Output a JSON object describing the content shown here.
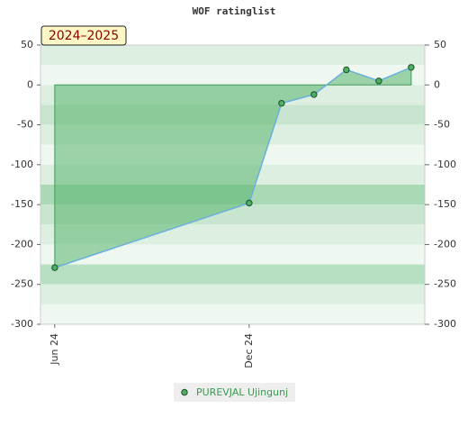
{
  "chart_data": {
    "type": "area",
    "title": "WOF ratinglist",
    "badge": "2024–2025",
    "x": [
      0,
      6,
      7,
      8,
      9,
      10,
      11
    ],
    "xlim": [
      -0.44,
      11.42
    ],
    "xticks": [
      {
        "value": 0,
        "label": "Jun 24"
      },
      {
        "value": 6,
        "label": "Dec 24"
      }
    ],
    "series": [
      {
        "name": "PUREVJAL Ujingunj",
        "color": "#5ab56e",
        "values": [
          -229,
          -148,
          -23,
          -12,
          19,
          5,
          22
        ]
      }
    ],
    "ylim": [
      -300,
      50
    ],
    "yticks": [
      -300,
      -250,
      -200,
      -150,
      -100,
      -50,
      0,
      50
    ],
    "y2lim": [
      -300,
      50
    ],
    "y2ticks": [
      -300,
      -250,
      -200,
      -150,
      -100,
      -50,
      0,
      50
    ]
  }
}
